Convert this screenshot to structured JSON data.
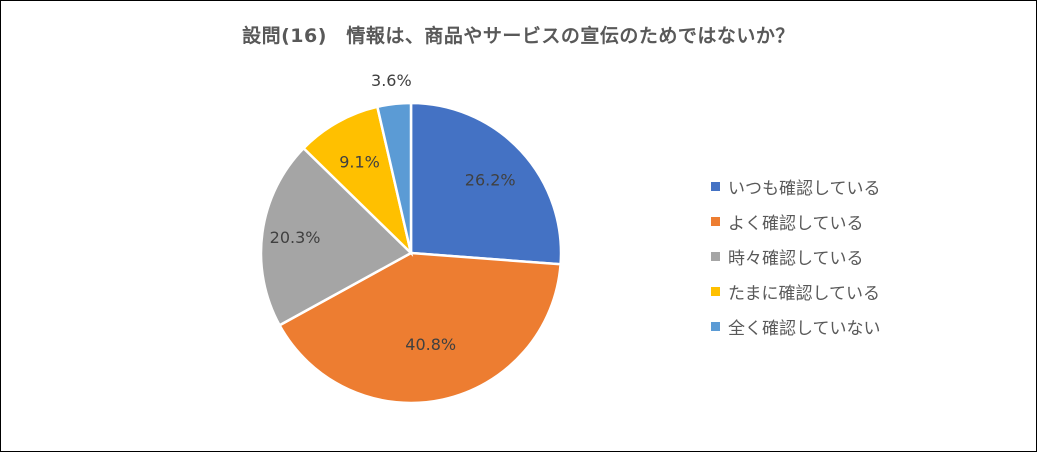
{
  "chart_data": {
    "type": "pie",
    "title": "設問(16)　情報は、商品やサービスの宣伝のためではないか？",
    "categories": [
      "いつも確認している",
      "よく確認している",
      "時々確認している",
      "たまに確認している",
      "全く確認していない"
    ],
    "values": [
      26.2,
      40.8,
      20.3,
      9.1,
      3.6
    ],
    "data_labels": [
      "26.2%",
      "40.8%",
      "20.3%",
      "9.1%",
      "3.6%"
    ],
    "colors": [
      "#4472c4",
      "#ed7d31",
      "#a5a5a5",
      "#ffc000",
      "#5b9bd5"
    ],
    "legend_placement": "right"
  }
}
